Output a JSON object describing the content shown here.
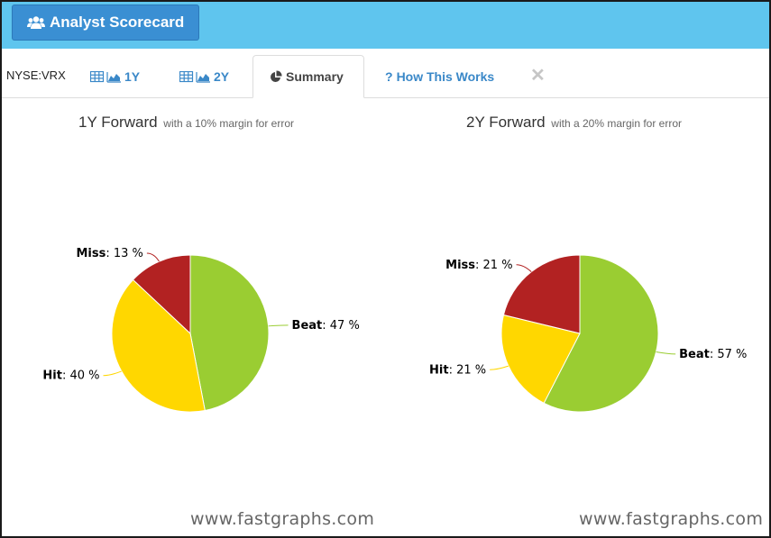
{
  "header": {
    "button_label": "Analyst Scorecard",
    "button_icon": "users-icon"
  },
  "tabs": {
    "ticker": "NYSE:VRX",
    "items": [
      {
        "label": "1Y",
        "icon": "table-chart-icon"
      },
      {
        "label": "2Y",
        "icon": "table-chart-icon"
      },
      {
        "label": "Summary",
        "icon": "pie-icon"
      },
      {
        "label": "How This Works",
        "icon": "question-icon"
      }
    ],
    "close_symbol": "✕",
    "active_color": "#444444",
    "link_color": "#3a88c8"
  },
  "chart_data": [
    {
      "type": "pie",
      "title": "1Y Forward",
      "subtitle": "with a 10% margin for error",
      "slices": [
        {
          "name": "Beat",
          "value": 47,
          "color": "#9acd32"
        },
        {
          "name": "Hit",
          "value": 40,
          "color": "#ffd700"
        },
        {
          "name": "Miss",
          "value": 13,
          "color": "#b22222"
        }
      ]
    },
    {
      "type": "pie",
      "title": "2Y Forward",
      "subtitle": "with a 20% margin for error",
      "slices": [
        {
          "name": "Beat",
          "value": 57,
          "color": "#9acd32"
        },
        {
          "name": "Hit",
          "value": 21,
          "color": "#ffd700"
        },
        {
          "name": "Miss",
          "value": 21,
          "color": "#b22222"
        }
      ]
    }
  ],
  "watermarks": [
    "www.fastgraphs.com",
    "www.fastgraphs.com"
  ]
}
